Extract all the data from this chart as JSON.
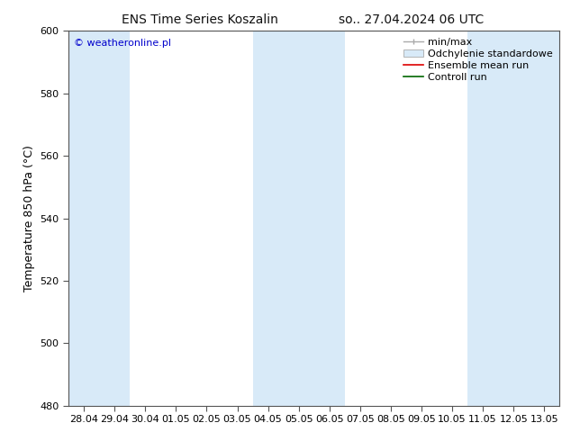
{
  "title_left": "ENS Time Series Koszalin",
  "title_right": "so.. 27.04.2024 06 UTC",
  "ylabel": "Temperature 850 hPa (°C)",
  "ylim": [
    480,
    600
  ],
  "yticks": [
    480,
    500,
    520,
    540,
    560,
    580,
    600
  ],
  "xtick_labels": [
    "28.04",
    "29.04",
    "30.04",
    "01.05",
    "02.05",
    "03.05",
    "04.05",
    "05.05",
    "06.05",
    "07.05",
    "08.05",
    "09.05",
    "10.05",
    "11.05",
    "12.05",
    "13.05"
  ],
  "xtick_positions": [
    0,
    1,
    2,
    3,
    4,
    5,
    6,
    7,
    8,
    9,
    10,
    11,
    12,
    13,
    14,
    15
  ],
  "xlim": [
    -0.5,
    15.5
  ],
  "shaded_bands": [
    {
      "x_start": -0.5,
      "x_end": 1.5
    },
    {
      "x_start": 5.5,
      "x_end": 8.5
    },
    {
      "x_start": 12.5,
      "x_end": 15.5
    }
  ],
  "band_color": "#d8eaf8",
  "watermark": "© weatheronline.pl",
  "watermark_color": "#0000cc",
  "legend_labels": [
    "min/max",
    "Odchylenie standardowe",
    "Ensemble mean run",
    "Controll run"
  ],
  "legend_colors_line": [
    "#aaaaaa",
    "#bbccdd",
    "#dd0000",
    "#006600"
  ],
  "background_color": "#ffffff",
  "title_fontsize": 10,
  "axis_label_fontsize": 9,
  "tick_fontsize": 8,
  "legend_fontsize": 8
}
